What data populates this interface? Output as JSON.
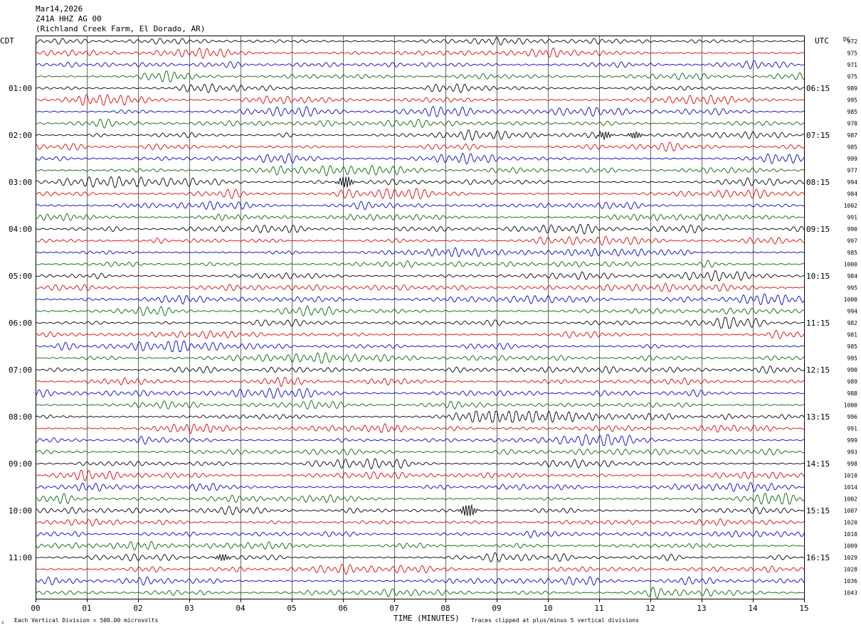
{
  "header": {
    "date": "Mar14,2026",
    "station": "Z41A HHZ AG 00",
    "location": "(Richland Creek Farm, El Dorado, AR)"
  },
  "footer": {
    "scale": "Each Vertical Division =  500.00 microvolts",
    "clip_note": "Traces clipped at plus/minus 5 vertical divisions",
    "mark": "☓"
  },
  "chart_data": {
    "type": "line",
    "title": "",
    "xlabel": "TIME (MINUTES)",
    "ylabel": "",
    "xlim": [
      0,
      15
    ],
    "x_ticks": [
      "00",
      "01",
      "02",
      "03",
      "04",
      "05",
      "06",
      "07",
      "08",
      "09",
      "10",
      "11",
      "12",
      "13",
      "14",
      "15"
    ],
    "left_tz": "CDT",
    "right_tz": "UTC",
    "dc_header": "DC",
    "left_hour_labels": [
      "01:00",
      "02:00",
      "03:00",
      "04:00",
      "05:00",
      "06:00",
      "07:00",
      "08:00",
      "09:00",
      "10:00",
      "11:00"
    ],
    "right_hour_labels": [
      "06:15",
      "07:15",
      "08:15",
      "09:15",
      "10:15",
      "11:15",
      "12:15",
      "13:15",
      "14:15",
      "15:15",
      "16:15"
    ],
    "trace_colors": [
      "#000000",
      "#dd0000",
      "#0000cc",
      "#006600"
    ],
    "trace_count": 48,
    "dc_values": [
      "972",
      "975",
      "971",
      "975",
      "989",
      "995",
      "985",
      "978",
      "987",
      "985",
      "999",
      "977",
      "994",
      "984",
      "1002",
      "991",
      "990",
      "997",
      "985",
      "1000",
      "984",
      "995",
      "1000",
      "994",
      "982",
      "981",
      "985",
      "995",
      "990",
      "989",
      "988",
      "1000",
      "996",
      "991",
      "999",
      "993",
      "998",
      "1010",
      "1014",
      "1002",
      "1007",
      "1020",
      "1018",
      "1009",
      "1029",
      "1028",
      "1036",
      "1043"
    ],
    "events": [
      {
        "trace": 8,
        "minute": 11.1,
        "strength": 1.0
      },
      {
        "trace": 8,
        "minute": 11.7,
        "strength": 0.9
      },
      {
        "trace": 12,
        "minute": 6.05,
        "strength": 1.6
      },
      {
        "trace": 40,
        "minute": 8.45,
        "strength": 2.0
      },
      {
        "trace": 44,
        "minute": 3.65,
        "strength": 0.9
      }
    ]
  }
}
